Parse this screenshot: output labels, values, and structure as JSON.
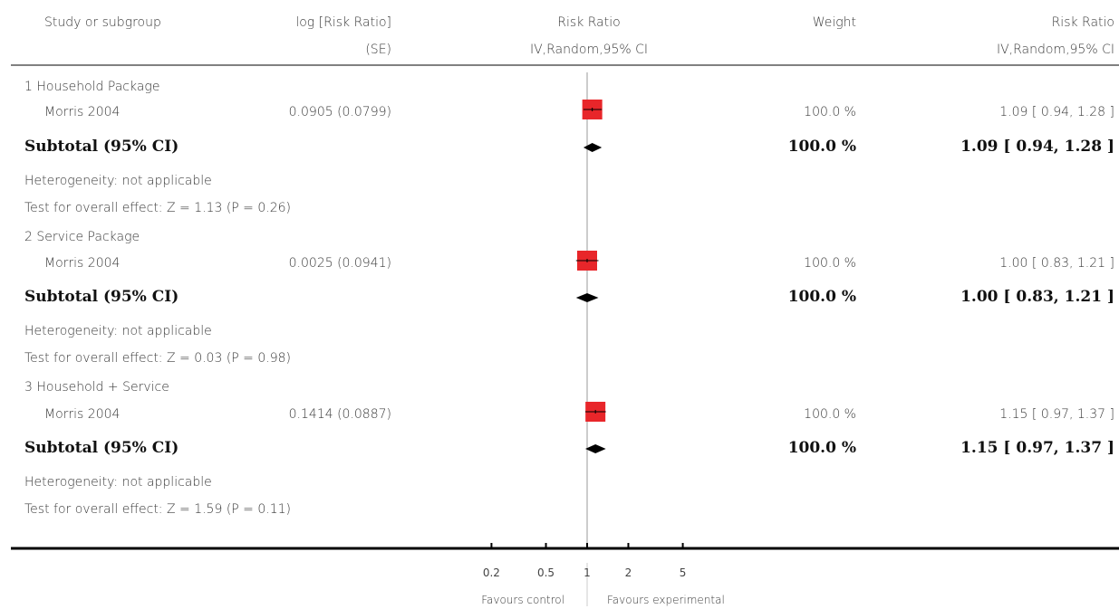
{
  "header": {
    "col_study": "Study or subgroup",
    "col_logrr_line1": "log [Risk Ratio]",
    "col_logrr_line2": "(SE)",
    "col_rr_plot_line1": "Risk Ratio",
    "col_rr_plot_line2": "IV,Random,95% CI",
    "col_weight": "Weight",
    "col_rr_line1": "Risk Ratio",
    "col_rr_line2": "IV,Random,95% CI"
  },
  "groups": [
    {
      "title": "1 Household Package",
      "study": "Morris 2004",
      "logrr_se": "0.0905 (0.0799)",
      "weight": "100.0 %",
      "rr_ci": "1.09 [ 0.94, 1.28 ]",
      "subtotal_label": "Subtotal (95% CI)",
      "subtotal_weight": "100.0 %",
      "subtotal_rr_ci": "1.09 [ 0.94, 1.28 ]",
      "heterogeneity": "Heterogeneity: not applicable",
      "overall_effect": "Test for overall effect: Z = 1.13 (P = 0.26)"
    },
    {
      "title": "2 Service Package",
      "study": "Morris 2004",
      "logrr_se": "0.0025 (0.0941)",
      "weight": "100.0 %",
      "rr_ci": "1.00 [ 0.83, 1.21 ]",
      "subtotal_label": "Subtotal (95% CI)",
      "subtotal_weight": "100.0 %",
      "subtotal_rr_ci": "1.00 [ 0.83, 1.21 ]",
      "heterogeneity": "Heterogeneity: not applicable",
      "overall_effect": "Test for overall effect: Z = 0.03 (P = 0.98)"
    },
    {
      "title": "3 Household + Service",
      "study": "Morris 2004",
      "logrr_se": "0.1414 (0.0887)",
      "weight": "100.0 %",
      "rr_ci": "1.15 [ 0.97, 1.37 ]",
      "subtotal_label": "Subtotal (95% CI)",
      "subtotal_weight": "100.0 %",
      "subtotal_rr_ci": "1.15 [ 0.97, 1.37 ]",
      "heterogeneity": "Heterogeneity: not applicable",
      "overall_effect": "Test for overall effect: Z = 1.59 (P = 0.11)"
    }
  ],
  "footer": {
    "favours_left": "Favours control",
    "favours_right": "Favours experimental"
  },
  "colors": {
    "study_box": "#e8262a",
    "diamond": "#000000",
    "line": "#000000"
  },
  "chart_data": {
    "type": "forest",
    "scale": "log",
    "x_ticks": [
      0.2,
      0.5,
      1,
      2,
      5
    ],
    "x_tick_labels": [
      "0.2",
      "0.5",
      "1",
      "2",
      "5"
    ],
    "null_value": 1,
    "studies": [
      {
        "group": 1,
        "rr": 1.09,
        "lo": 0.94,
        "hi": 1.28,
        "weight": 100.0
      },
      {
        "group": 2,
        "rr": 1.0,
        "lo": 0.83,
        "hi": 1.21,
        "weight": 100.0
      },
      {
        "group": 3,
        "rr": 1.15,
        "lo": 0.97,
        "hi": 1.37,
        "weight": 100.0
      }
    ],
    "subtotals": [
      {
        "group": 1,
        "rr": 1.09,
        "lo": 0.94,
        "hi": 1.28
      },
      {
        "group": 2,
        "rr": 1.0,
        "lo": 0.83,
        "hi": 1.21
      },
      {
        "group": 3,
        "rr": 1.15,
        "lo": 0.97,
        "hi": 1.37
      }
    ]
  }
}
